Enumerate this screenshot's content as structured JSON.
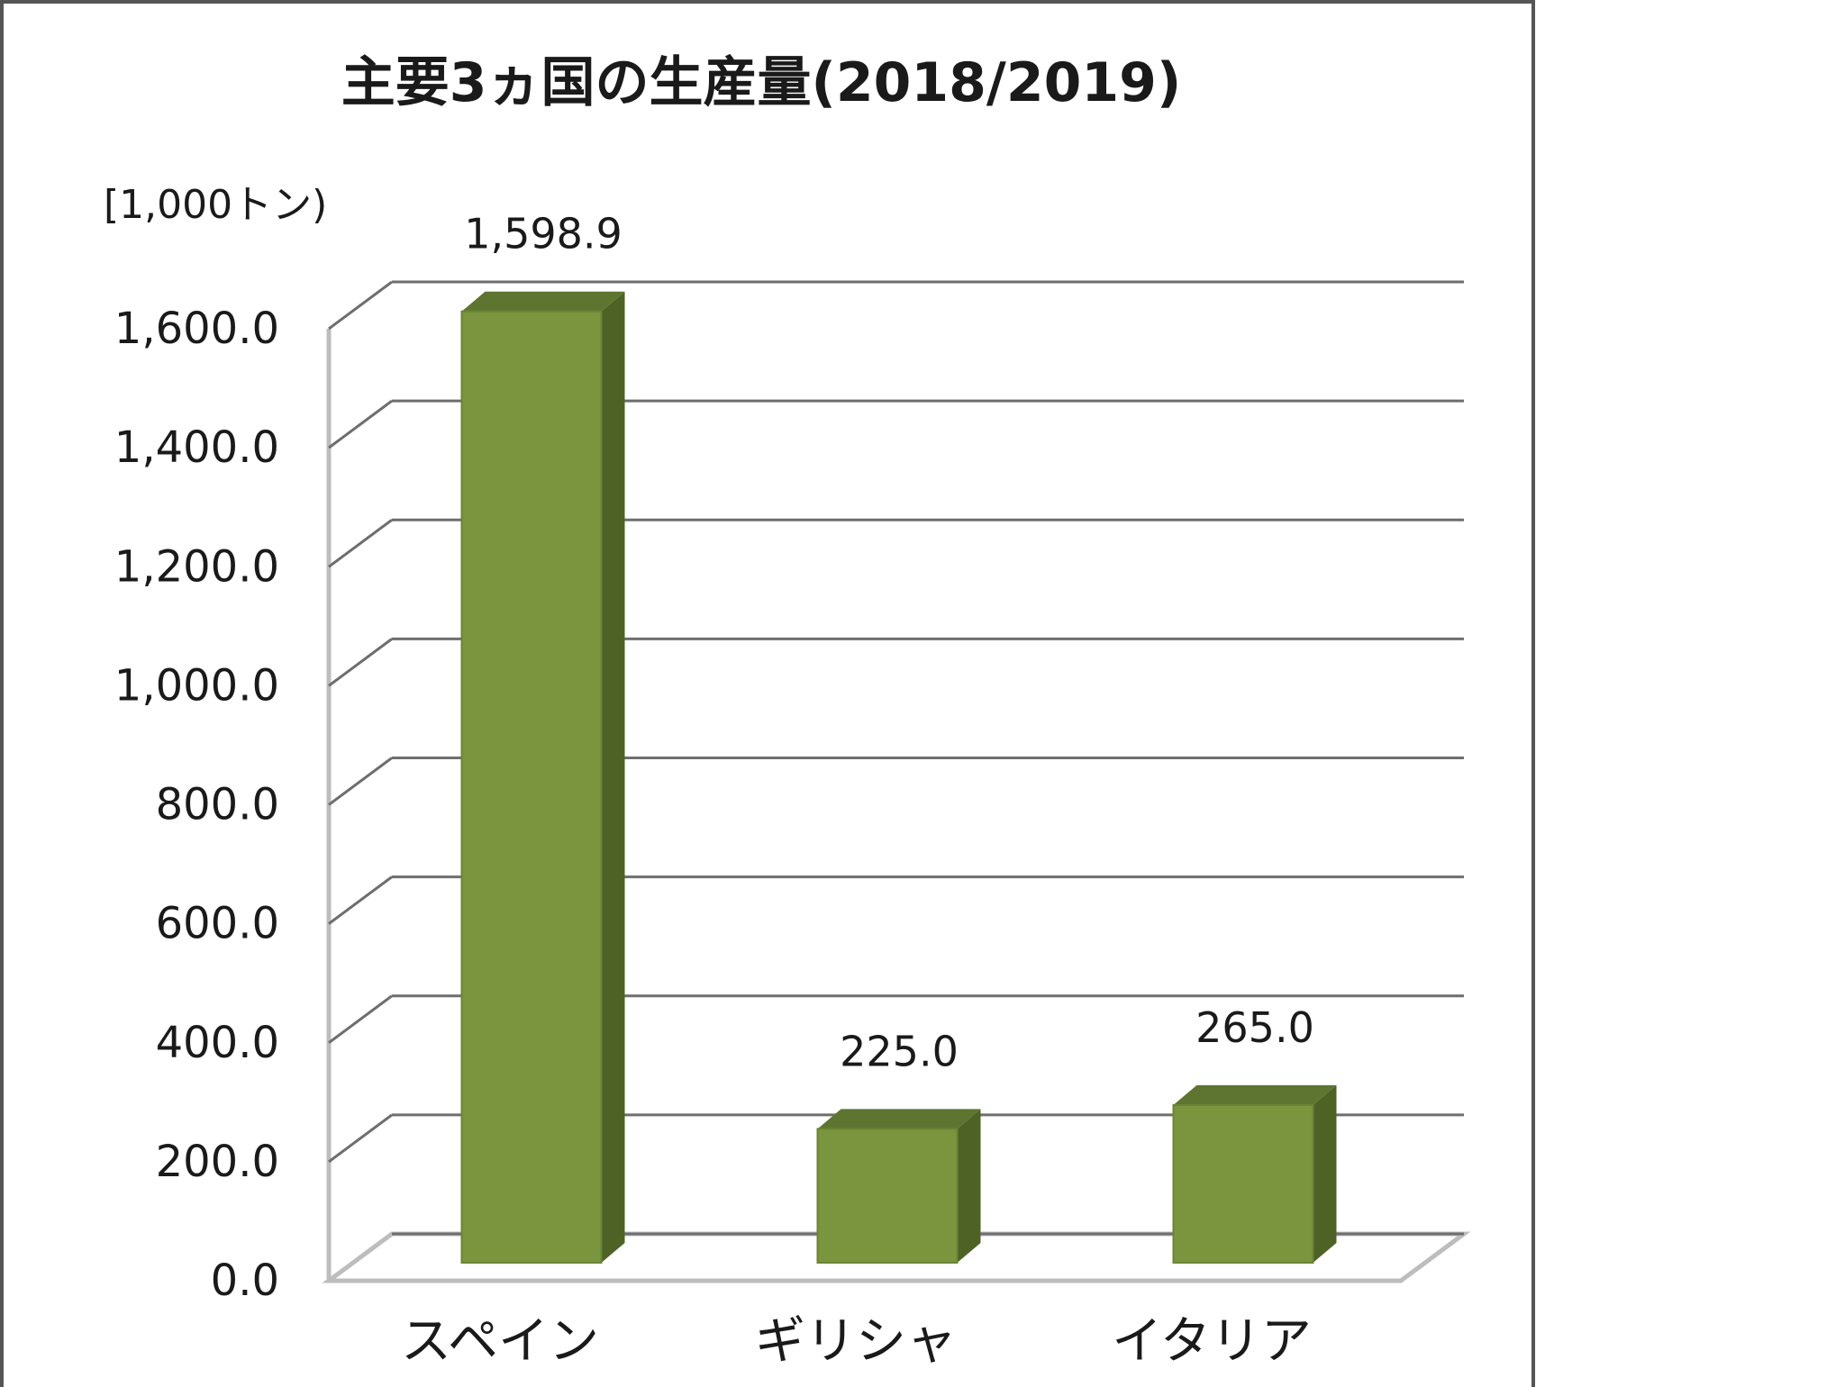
{
  "chart_data": {
    "type": "bar",
    "style": "3d-column",
    "title": "主要3ヵ国の生産量(2018/2019)",
    "unit_label": "[1,000トン)",
    "categories": [
      "スペイン",
      "ギリシャ",
      "イタリア"
    ],
    "values": [
      1598.9,
      225.0,
      265.0
    ],
    "data_labels": [
      "1,598.9",
      "225.0",
      "265.0"
    ],
    "y_ticks": [
      "0.0",
      "200.0",
      "400.0",
      "600.0",
      "800.0",
      "1,000.0",
      "1,200.0",
      "1,400.0",
      "1,600.0"
    ],
    "ylim": [
      0,
      1600
    ],
    "grid": true,
    "legend": "none",
    "colors": {
      "bar_front": "#7a953e",
      "bar_side": "#4e6226",
      "bar_top": "#5d7530",
      "grid": "#6e6e6e",
      "wall": "#bdbdbd",
      "frame": "#555555",
      "text": "#1a1a1a"
    }
  }
}
